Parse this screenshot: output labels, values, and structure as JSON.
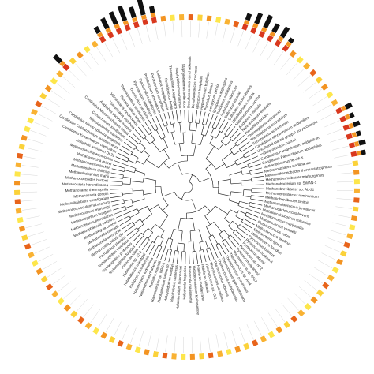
{
  "tree": {
    "leaves": [
      {
        "label": "Halophilic archaeon DL31"
      },
      {
        "label": "Candidatus Korarchaeum cryptofilum"
      },
      {
        "label": "Candidatus Caldiarchaeum subterraneum"
      },
      {
        "label": "Candidatus Nitrososphaera gargensis"
      },
      {
        "label": "Nitrosopumilus maritimus"
      },
      {
        "label": "Cenarchaeum symbiosum"
      },
      {
        "label": "Candidatus Nitrosoarchaeum limnia"
      },
      {
        "label": "Acidilobus saccharovorans",
        "bar": 4
      },
      {
        "label": "Vulcanisaeta distributa"
      },
      {
        "label": "Vulcanisaeta moutnovskia"
      },
      {
        "label": "Thermoproteus tenax"
      },
      {
        "label": "Thermoproteus uzoniensis"
      },
      {
        "label": "Thermofilum pendens",
        "bar": 3
      },
      {
        "label": "Pyrobaculum islandicum",
        "bar": 5
      },
      {
        "label": "Pyrobaculum calidifontis",
        "bar": 6
      },
      {
        "label": "Pyrobaculum arsenaticum",
        "bar": 7
      },
      {
        "label": "Pyrobaculum aerophilum",
        "bar": 5
      },
      {
        "label": "Caldivirga maquilingensis",
        "bar": 9
      },
      {
        "label": "Fervidicoccus fontis",
        "bar": 3
      },
      {
        "label": "Thermosphaera aggregans"
      },
      {
        "label": "Staphylothermus marinus"
      },
      {
        "label": "Staphylothermus hellenicus"
      },
      {
        "label": "Desulfurococcus kamchatkensis"
      },
      {
        "label": "Desulfurococcus mucosus"
      },
      {
        "label": "Ignicoccus hospitalis"
      },
      {
        "label": "Hyperthermus butylicus"
      },
      {
        "label": "Pyrolobus fumarii"
      },
      {
        "label": "Aeropyrum pernix"
      },
      {
        "label": "Ignisphaera aggregans",
        "bar": 3
      },
      {
        "label": "Sulfolobus solfataricus",
        "bar": 5
      },
      {
        "label": "Sulfolobus islandicus",
        "bar": 6
      },
      {
        "label": "Sulfolobus tokodaii",
        "bar": 4
      },
      {
        "label": "Sulfolobus acidocaldarius",
        "bar": 5
      },
      {
        "label": "Metallosphaera sedula",
        "bar": 2
      },
      {
        "label": "Metallosphaera cuprina"
      },
      {
        "label": "Acidianus hospitalis"
      },
      {
        "label": "Nanoarchaeum equitans"
      },
      {
        "label": "Picrophilus torridus"
      },
      {
        "label": "Thermoplasma volcanium"
      },
      {
        "label": "Thermoplasma acidophilum"
      },
      {
        "label": "Ferroplasma acidarmanus"
      },
      {
        "label": "Candidatus Micrarchaeum acidiphilum"
      },
      {
        "label": "Uncultured marine group II euryarchaeote",
        "bar": 3
      },
      {
        "label": "Aciduliprofundum boonei",
        "bar": 2
      },
      {
        "label": "Candidatus Parvarchaeum acidiphilum",
        "bar": 3
      },
      {
        "label": "Candidatus Parvarchaeum acidophilus",
        "bar": 2
      },
      {
        "label": "Methanothermus fervidus",
        "bar": 3
      },
      {
        "label": "Methanosphaera stadtmanae",
        "bar": 2
      },
      {
        "label": "Methanothermobacter thermautotrophicus"
      },
      {
        "label": "Methanothermobacter marburgensis"
      },
      {
        "label": "Methanobacterium sp. SWAN-1"
      },
      {
        "label": "Methanobrevibacter sp. AL-21"
      },
      {
        "label": "Methanobrevibacter ruminantium"
      },
      {
        "label": "Methanobrevibacter smithii"
      },
      {
        "label": "Methanocaldococcus jannaschii"
      },
      {
        "label": "Methanocaldococcus fervens"
      },
      {
        "label": "Methanocaldococcus vulcanius"
      },
      {
        "label": "Methanococcus maripaludis"
      },
      {
        "label": "Methanococcus vannielii"
      },
      {
        "label": "Methanococcus voltae"
      },
      {
        "label": "Methanococcus aeolicus"
      },
      {
        "label": "Methanotorris igneus"
      },
      {
        "label": "Methanopyrus kandleri"
      },
      {
        "label": "Pyrococcus furiosus"
      },
      {
        "label": "Pyrococcus horikoshii"
      },
      {
        "label": "Pyrococcus abyssi"
      },
      {
        "label": "Pyrococcus sp. NA2"
      },
      {
        "label": "Pyrococcus yayanosii"
      },
      {
        "label": "Thermococcus sp. 4557"
      },
      {
        "label": "Thermococcus sp. AM4"
      },
      {
        "label": "Thermococcus onnurineus"
      },
      {
        "label": "Thermococcus gammatolerans"
      },
      {
        "label": "Thermococcus kodakarensis"
      },
      {
        "label": "Thermococcus sibiricus"
      },
      {
        "label": "Thermococcus barophilus"
      },
      {
        "label": "Thermococcus sp. CL1"
      },
      {
        "label": "Haloferax volcanii"
      },
      {
        "label": "Haloferax mediterranei"
      },
      {
        "label": "Halogeometricum borinquense"
      },
      {
        "label": "Haloarcula marismortui"
      },
      {
        "label": "Haloarcula hispanica"
      },
      {
        "label": "Halomicrobium mukohataei"
      },
      {
        "label": "Halorhabdus utahensis"
      },
      {
        "label": "Haloquadratum walsbyi"
      },
      {
        "label": "Halobacterium salinarum"
      },
      {
        "label": "Halobacterium sp. NRC-1"
      },
      {
        "label": "Natrialba magadii"
      },
      {
        "label": "Natronomonas pharaonis"
      },
      {
        "label": "Haloterrigena turkmenica"
      },
      {
        "label": "Halopiger xanaduensis"
      },
      {
        "label": "Halalkalicoccus jeotgali"
      },
      {
        "label": "Natrinema sp. J7-2"
      },
      {
        "label": "Halovivax ruber"
      },
      {
        "label": "Archaeoglobus fulgidus"
      },
      {
        "label": "Archaeoglobus profundus"
      },
      {
        "label": "Archaeoglobus veneficus"
      },
      {
        "label": "Ferroglobus placidus"
      },
      {
        "label": "Methanocella paludicola"
      },
      {
        "label": "Methanocella arvoryzae"
      },
      {
        "label": "Methanocella conradii"
      },
      {
        "label": "Methanoregula boonei"
      },
      {
        "label": "Methanosphaerula palustris"
      },
      {
        "label": "Methanoplanus petrolearius"
      },
      {
        "label": "Methanospirillum hungatei"
      },
      {
        "label": "Methanoculleus marisnigri"
      },
      {
        "label": "Methanocorpusculum labreanum"
      },
      {
        "label": "Methanohalobium evestigatum"
      },
      {
        "label": "Methanosaeta concilii"
      },
      {
        "label": "Methanosaeta thermophila"
      },
      {
        "label": "Methanosaeta harundinacea"
      },
      {
        "label": "Methanococcoides burtonii"
      },
      {
        "label": "Methanohalophilus mahii"
      },
      {
        "label": "Methanosalsum zhilinae"
      },
      {
        "label": "Methanosarcina barkeri"
      },
      {
        "label": "Methanosarcina mazei"
      },
      {
        "label": "Methanosarcina acetivorans"
      }
    ]
  }
}
